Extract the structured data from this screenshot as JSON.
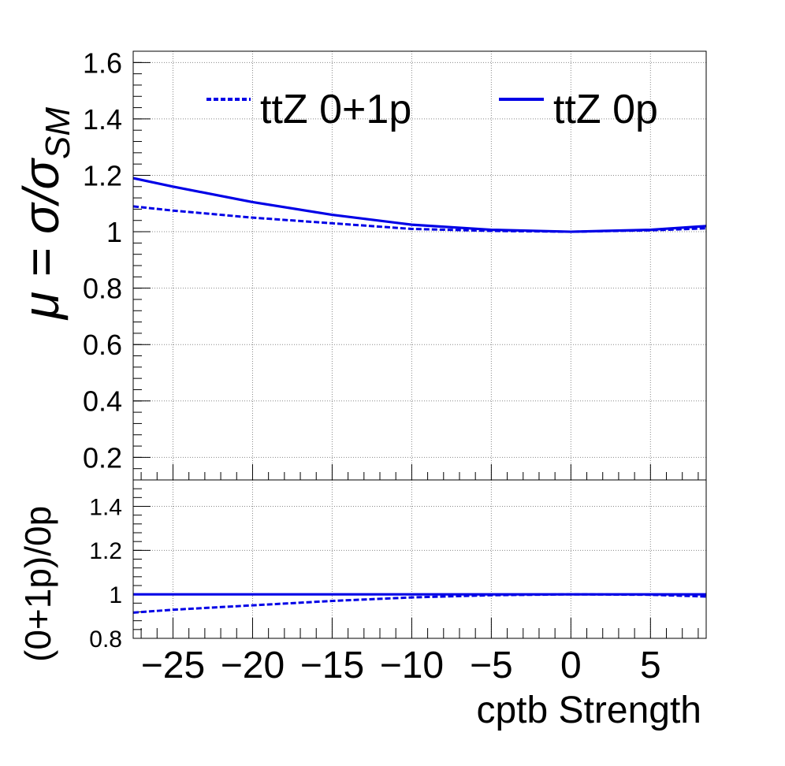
{
  "chart_data": [
    {
      "panel": "top",
      "type": "line",
      "ylabel_main": "μ = σ/σ",
      "ylabel_sub": "SM",
      "xlim": [
        -27.5,
        8.5
      ],
      "ylim": [
        0.12,
        1.64
      ],
      "yticks": [
        0.2,
        0.4,
        0.6,
        0.8,
        1,
        1.2,
        1.4,
        1.6
      ],
      "ytick_labels": [
        "0.2",
        "0.4",
        "0.6",
        "0.8",
        "1",
        "1.2",
        "1.4",
        "1.6"
      ],
      "xticks": [
        -25,
        -20,
        -15,
        -10,
        -5,
        0,
        5
      ],
      "grid": true,
      "legend_position": "top",
      "series": [
        {
          "name": "ttZ 0+1p",
          "style": "dashed",
          "color": "#0000e6",
          "x": [
            -27.5,
            -25,
            -20,
            -15,
            -10,
            -5,
            0,
            5,
            8.5
          ],
          "y": [
            1.09,
            1.075,
            1.05,
            1.03,
            1.01,
            1.003,
            1.0,
            1.005,
            1.012
          ]
        },
        {
          "name": "ttZ 0p",
          "style": "solid",
          "color": "#0000e6",
          "x": [
            -27.5,
            -25,
            -20,
            -15,
            -10,
            -5,
            0,
            5,
            8.5
          ],
          "y": [
            1.19,
            1.16,
            1.105,
            1.06,
            1.025,
            1.007,
            1.0,
            1.007,
            1.02
          ]
        }
      ]
    },
    {
      "panel": "bottom",
      "type": "line",
      "ylabel": "(0+1p)/0p",
      "xlabel": "cptb Strength",
      "xlim": [
        -27.5,
        8.5
      ],
      "ylim": [
        0.8,
        1.52
      ],
      "yticks": [
        0.8,
        1,
        1.2,
        1.4
      ],
      "ytick_labels": [
        "0.8",
        "1",
        "1.2",
        "1.4"
      ],
      "xticks": [
        -25,
        -20,
        -15,
        -10,
        -5,
        0,
        5
      ],
      "xtick_labels": [
        "−25",
        "−20",
        "−15",
        "−10",
        "−5",
        "0",
        "5"
      ],
      "grid": true,
      "series": [
        {
          "style": "dashed",
          "color": "#0000e6",
          "x": [
            -27.5,
            -25,
            -20,
            -15,
            -10,
            -5,
            0,
            5,
            8.5
          ],
          "y": [
            0.917,
            0.93,
            0.95,
            0.97,
            0.986,
            0.996,
            1.0,
            0.998,
            0.99
          ]
        },
        {
          "style": "solid",
          "color": "#0000e6",
          "x": [
            -27.5,
            8.5
          ],
          "y": [
            1.0,
            1.0
          ]
        }
      ]
    }
  ]
}
